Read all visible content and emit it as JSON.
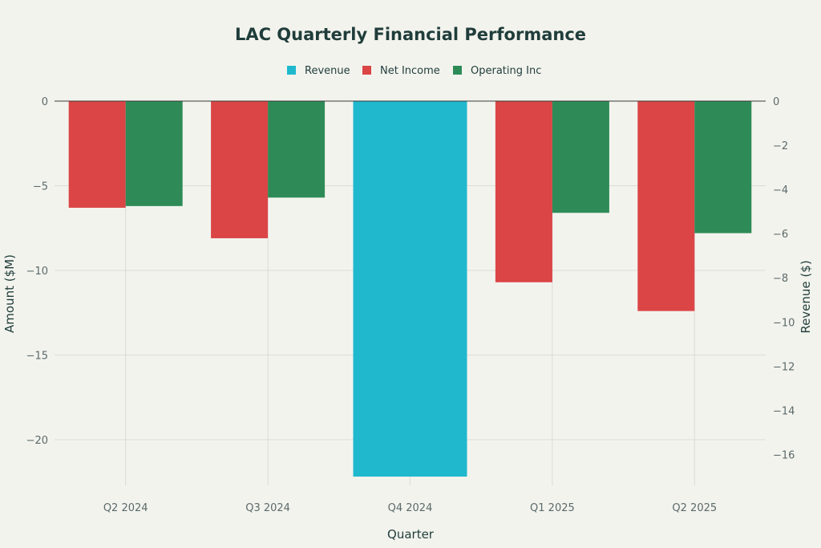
{
  "chart_data": {
    "type": "bar",
    "title": "LAC Quarterly Financial Performance",
    "xlabel": "Quarter",
    "ylabel": "Amount ($M)",
    "y2label": "Revenue ($)",
    "categories": [
      "Q2 2024",
      "Q3 2024",
      "Q4 2024",
      "Q1 2025",
      "Q2 2025"
    ],
    "ylim": [
      -22.7,
      0
    ],
    "yticks": [
      0,
      -5,
      -10,
      -15,
      -20
    ],
    "y2lim": [
      -17.4,
      0
    ],
    "y2ticks": [
      0,
      -2,
      -4,
      -6,
      -8,
      -10,
      -12,
      -14,
      -16
    ],
    "grid": true,
    "legend_position": "top-center",
    "series": [
      {
        "name": "Revenue",
        "axis": "right",
        "color": "#1fb8cd",
        "values": [
          null,
          null,
          -17.0,
          null,
          null
        ]
      },
      {
        "name": "Net Income",
        "axis": "left",
        "color": "#db4545",
        "values": [
          -6.3,
          -8.1,
          null,
          -10.7,
          -12.4
        ]
      },
      {
        "name": "Operating Inc",
        "axis": "left",
        "color": "#2e8b57",
        "values": [
          -6.2,
          -5.7,
          null,
          -6.6,
          -7.8
        ]
      }
    ]
  }
}
